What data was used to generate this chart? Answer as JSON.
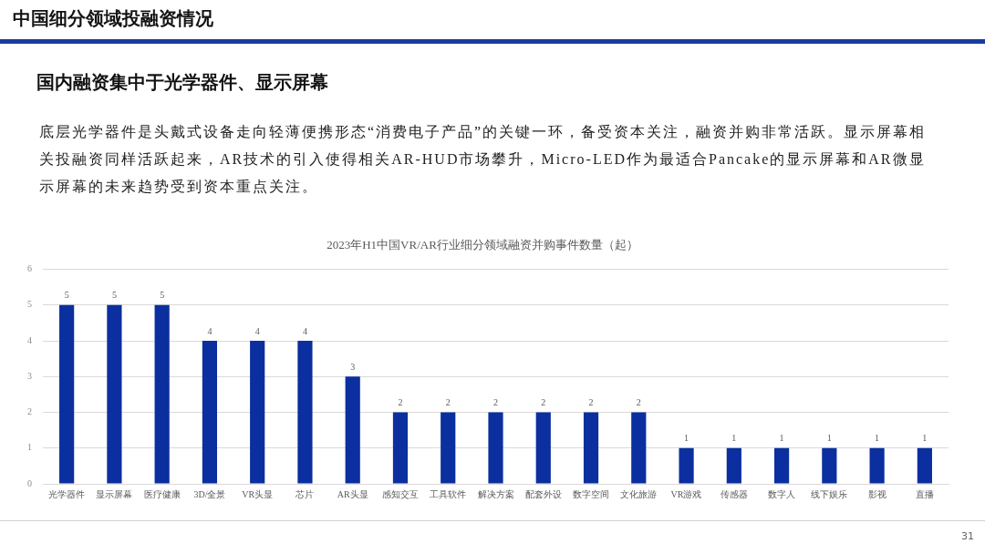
{
  "chart_data": {
    "type": "bar",
    "title": "2023年H1中国VR/AR行业细分领域融资并购事件数量（起）",
    "categories": [
      "光学器件",
      "显示屏幕",
      "医疗健康",
      "3D/全景",
      "VR头显",
      "芯片",
      "AR头显",
      "感知交互",
      "工具软件",
      "解决方案",
      "配套外设",
      "数字空间",
      "文化旅游",
      "VR游戏",
      "传感器",
      "数字人",
      "线下娱乐",
      "影视",
      "直播"
    ],
    "values": [
      5,
      5,
      5,
      4,
      4,
      4,
      3,
      2,
      2,
      2,
      2,
      2,
      2,
      1,
      1,
      1,
      1,
      1,
      1
    ],
    "color": "#0b2f9f",
    "ylim": [
      0,
      6
    ],
    "yticks": [
      0,
      1,
      2,
      3,
      4,
      5,
      6
    ],
    "grid": "y",
    "data_labels": true,
    "annotations": [
      "中国细分领域投融资情况",
      "国内融资集中于光学器件、显示屏幕",
      "底层光学器件是头戴式设备走向轻薄便携形态“消费电子产品”的关键一环，备受资本关注，融资并购非常活跃。显示屏幕相关投融资同样活跃起来，AR技术的引入使得相关AR-HUD市场攀升，Micro-LED作为最适合Pancake的显示屏幕和AR微显示屏幕的未来趋势受到资本重点关注。",
      "31"
    ]
  }
}
